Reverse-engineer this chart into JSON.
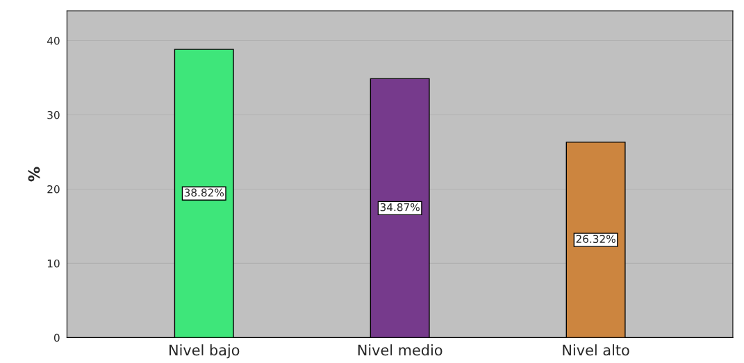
{
  "chart_data": {
    "type": "bar",
    "ylabel": "%",
    "categories": [
      "Nivel bajo",
      "Nivel medio",
      "Nivel alto"
    ],
    "values": [
      38.82,
      34.87,
      26.32
    ],
    "colors": [
      "#3ee67a",
      "#763a8c",
      "#cc853f"
    ],
    "value_labels": [
      "38.82%",
      "34.87%",
      "26.32%"
    ],
    "ylim": [
      0,
      44
    ],
    "yticks": [
      0,
      10,
      20,
      30,
      40
    ],
    "grid": "y"
  }
}
